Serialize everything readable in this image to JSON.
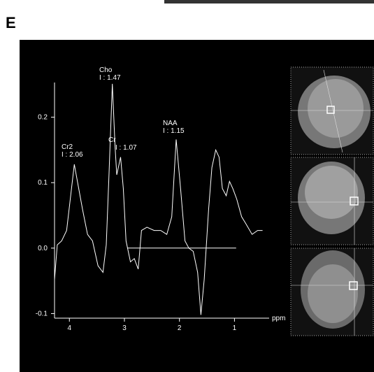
{
  "panel_label": "E",
  "chart_data": {
    "type": "line",
    "x_label": "ppm",
    "annotations": [
      [
        "Cho",
        "I : 1.47"
      ],
      [
        "Cr2",
        "I : 2.06"
      ],
      [
        "Cr",
        "I : 1.07"
      ],
      [
        "NAA",
        "I : 1.15"
      ]
    ],
    "xlim": [
      4.27,
      0.37
    ],
    "xticks": [
      4,
      3,
      2,
      1
    ],
    "ylim": [
      -0.107,
      0.253
    ],
    "yticks": [
      0.2,
      0.1,
      {
        "value": 0,
        "label": "0.0"
      },
      -0.1
    ],
    "series": [
      {
        "color": "#ffffff",
        "x": [
          4.27,
          4.22,
          4.14,
          4.05,
          3.99,
          3.91,
          3.83,
          3.76,
          3.67,
          3.58,
          3.48,
          3.39,
          3.33,
          3.28,
          3.22,
          3.17,
          3.14,
          3.07,
          3.02,
          2.97,
          2.89,
          2.82,
          2.75,
          2.69,
          2.59,
          2.46,
          2.34,
          2.23,
          2.14,
          2.06,
          1.98,
          1.9,
          1.83,
          1.75,
          1.67,
          1.61,
          1.55,
          1.47,
          1.41,
          1.34,
          1.28,
          1.22,
          1.15,
          1.09,
          1.03,
          0.96,
          0.87,
          0.79,
          0.68,
          0.58,
          0.49
        ],
        "values": [
          -0.048,
          0.005,
          0.011,
          0.027,
          0.07,
          0.128,
          0.091,
          0.059,
          0.021,
          0.011,
          -0.027,
          -0.037,
          0.005,
          0.112,
          0.251,
          0.155,
          0.112,
          0.139,
          0.091,
          0.011,
          -0.021,
          -0.016,
          -0.032,
          0.027,
          0.032,
          0.027,
          0.027,
          0.021,
          0.048,
          0.166,
          0.091,
          0.011,
          0.0,
          -0.005,
          -0.037,
          -0.102,
          -0.048,
          0.059,
          0.123,
          0.15,
          0.139,
          0.091,
          0.08,
          0.102,
          0.091,
          0.075,
          0.048,
          0.037,
          0.021,
          0.027,
          0.027
        ]
      },
      {
        "color": "#ffffff",
        "x": [
          2.95,
          0.97
        ],
        "values": [
          0,
          0
        ]
      }
    ]
  }
}
